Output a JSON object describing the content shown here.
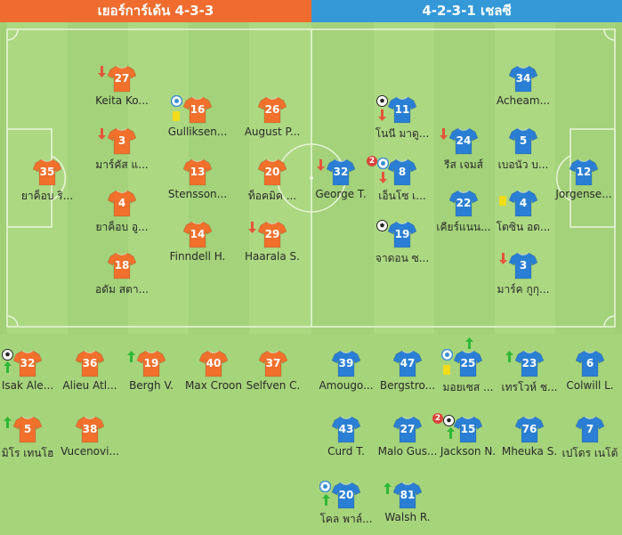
{
  "header": {
    "home_title": "เยอร์การ์เด้น 4-3-3",
    "away_title": "4-2-3-1 เชลซี"
  },
  "colors": {
    "home": "#f0702c",
    "away": "#2a7fd4",
    "home_header": "#ef6c2e",
    "away_header": "#3599d8",
    "sub_off": "#e5553b",
    "sub_on": "#2fb836",
    "card": "#f4dc19"
  },
  "icons": {
    "goal": "football-icon",
    "assist": "assist-icon",
    "sub_off": "arrow-down-icon",
    "sub_on": "arrow-up-icon",
    "card": "yellow-card-icon"
  },
  "home_lineup": [
    {
      "number": "35",
      "name": "ยาค็อบ ริ...",
      "events": []
    },
    {
      "number": "27",
      "name": "Keita Ko...",
      "events": [
        "sub_off"
      ]
    },
    {
      "number": "3",
      "name": "มาร์คัส แ...",
      "events": [
        "sub_off"
      ]
    },
    {
      "number": "4",
      "name": "ยาค็อบ อู...",
      "events": []
    },
    {
      "number": "18",
      "name": "อดัม สตา...",
      "events": []
    },
    {
      "number": "16",
      "name": "Gulliksen...",
      "events": [
        "assist",
        "card"
      ]
    },
    {
      "number": "13",
      "name": "Stensson...",
      "events": []
    },
    {
      "number": "14",
      "name": "Finndell H.",
      "events": []
    },
    {
      "number": "26",
      "name": "August P...",
      "events": []
    },
    {
      "number": "20",
      "name": "ท็อคมิค ...",
      "events": []
    },
    {
      "number": "29",
      "name": "Haarala S.",
      "events": [
        "sub_off"
      ]
    }
  ],
  "away_lineup": [
    {
      "number": "32",
      "name": "George T.",
      "events": [
        "sub_off"
      ]
    },
    {
      "number": "11",
      "name": "โนนี มาดู...",
      "events": [
        "goal",
        "sub_off"
      ]
    },
    {
      "number": "8",
      "name": "เอ็นโซ เ...",
      "events": [
        "assist_count",
        "sub_off"
      ]
    },
    {
      "number": "19",
      "name": "จาดอน ซ...",
      "events": [
        "goal"
      ]
    },
    {
      "number": "24",
      "name": "รีส เจมส์",
      "events": [
        "sub_off"
      ]
    },
    {
      "number": "22",
      "name": "เคียร์แนน...",
      "events": []
    },
    {
      "number": "34",
      "name": "Acheam...",
      "events": []
    },
    {
      "number": "5",
      "name": "เบอนัว บ...",
      "events": []
    },
    {
      "number": "4",
      "name": "โตซิน อด...",
      "events": [
        "card"
      ]
    },
    {
      "number": "3",
      "name": "มาร์ค กูกุ...",
      "events": [
        "sub_off"
      ]
    },
    {
      "number": "12",
      "name": "Jorgense...",
      "events": []
    }
  ],
  "away_assist_count": "2",
  "home_bench": [
    {
      "number": "32",
      "name": "Isak Ale...",
      "events": [
        "goal",
        "sub_on"
      ]
    },
    {
      "number": "36",
      "name": "Alieu Atl...",
      "events": []
    },
    {
      "number": "19",
      "name": "Bergh V.",
      "events": [
        "sub_on"
      ]
    },
    {
      "number": "40",
      "name": "Max Croon",
      "events": []
    },
    {
      "number": "37",
      "name": "Selfven C.",
      "events": []
    },
    {
      "number": "5",
      "name": "มิโร เทนโฮ",
      "events": [
        "sub_on"
      ]
    },
    {
      "number": "38",
      "name": "Vucenovi...",
      "events": []
    }
  ],
  "away_bench": [
    {
      "number": "39",
      "name": "Amougo...",
      "events": []
    },
    {
      "number": "47",
      "name": "Bergstro...",
      "events": []
    },
    {
      "number": "25",
      "name": "มอยเซส ...",
      "events": [
        "assist",
        "card",
        "sub_on_top"
      ]
    },
    {
      "number": "23",
      "name": "เทรโวห์ ช...",
      "events": [
        "sub_on"
      ]
    },
    {
      "number": "6",
      "name": "Colwill L.",
      "events": []
    },
    {
      "number": "43",
      "name": "Curd T.",
      "events": []
    },
    {
      "number": "27",
      "name": "Malo Gus...",
      "events": []
    },
    {
      "number": "15",
      "name": "Jackson N.",
      "events": [
        "goal_count",
        "sub_on"
      ]
    },
    {
      "number": "76",
      "name": "Mheuka S.",
      "events": []
    },
    {
      "number": "7",
      "name": "เปโดร เนโต้",
      "events": []
    },
    {
      "number": "20",
      "name": "โคล พาล์...",
      "events": [
        "assist",
        "sub_on"
      ]
    },
    {
      "number": "81",
      "name": "Walsh R.",
      "events": [
        "sub_on"
      ]
    }
  ],
  "away_goal_count": "2"
}
